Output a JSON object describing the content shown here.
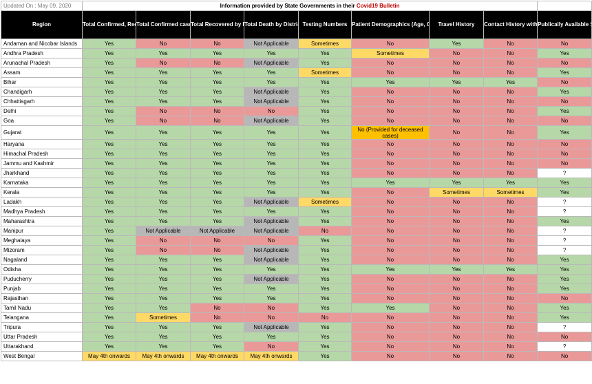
{
  "updated": "Updated On : May 09, 2020",
  "info_prefix": "Information provided by State Governments in their ",
  "info_highlight": "Covid19 Bulletin",
  "headers": [
    "Region",
    "Total Confirmed, Recovered, Deceased, Active Cases",
    "Total Confirmed case by District",
    "Total Recovered by District",
    "Total Death by District",
    "Testing Numbers",
    "Patient Demographics (Age, Gender)",
    "Travel History",
    "Contact History with Previous Patient",
    "Publically Available State Dashboard"
  ],
  "colors": {
    "yes": "#b6d7a8",
    "no": "#ea9999",
    "not_applicable": "#b7b7b7",
    "sometimes": "#ffd966",
    "note": "#ffc000",
    "header_bg": "#000000",
    "highlight_text": "#c00000"
  },
  "rows": [
    {
      "region": "Andaman and Nicobar Islands",
      "cells": [
        [
          "Yes",
          "y"
        ],
        [
          "No",
          "n"
        ],
        [
          "No",
          "n"
        ],
        [
          "Not Applicable",
          "na"
        ],
        [
          "Sometimes",
          "s"
        ],
        [
          "No",
          "n"
        ],
        [
          "Yes",
          "y"
        ],
        [
          "No",
          "n"
        ],
        [
          "No",
          "n"
        ]
      ]
    },
    {
      "region": "Andhra Pradesh",
      "cells": [
        [
          "Yes",
          "y"
        ],
        [
          "Yes",
          "y"
        ],
        [
          "Yes",
          "y"
        ],
        [
          "Yes",
          "y"
        ],
        [
          "Yes",
          "y"
        ],
        [
          "Sometimes",
          "s"
        ],
        [
          "No",
          "n"
        ],
        [
          "No",
          "n"
        ],
        [
          "Yes",
          "y"
        ]
      ]
    },
    {
      "region": "Arunachal Pradesh",
      "cells": [
        [
          "Yes",
          "y"
        ],
        [
          "No",
          "n"
        ],
        [
          "No",
          "n"
        ],
        [
          "Not Applicable",
          "na"
        ],
        [
          "Yes",
          "y"
        ],
        [
          "No",
          "n"
        ],
        [
          "No",
          "n"
        ],
        [
          "No",
          "n"
        ],
        [
          "No",
          "n"
        ]
      ]
    },
    {
      "region": "Assam",
      "cells": [
        [
          "Yes",
          "y"
        ],
        [
          "Yes",
          "y"
        ],
        [
          "Yes",
          "y"
        ],
        [
          "Yes",
          "y"
        ],
        [
          "Sometimes",
          "s"
        ],
        [
          "No",
          "n"
        ],
        [
          "No",
          "n"
        ],
        [
          "No",
          "n"
        ],
        [
          "Yes",
          "y"
        ]
      ]
    },
    {
      "region": "Bihar",
      "cells": [
        [
          "Yes",
          "y"
        ],
        [
          "Yes",
          "y"
        ],
        [
          "Yes",
          "y"
        ],
        [
          "Yes",
          "y"
        ],
        [
          "Yes",
          "y"
        ],
        [
          "Yes",
          "y"
        ],
        [
          "Yes",
          "y"
        ],
        [
          "Yes",
          "y"
        ],
        [
          "No",
          "n"
        ]
      ]
    },
    {
      "region": "Chandigarh",
      "cells": [
        [
          "Yes",
          "y"
        ],
        [
          "Yes",
          "y"
        ],
        [
          "Yes",
          "y"
        ],
        [
          "Not Applicable",
          "na"
        ],
        [
          "Yes",
          "y"
        ],
        [
          "No",
          "n"
        ],
        [
          "No",
          "n"
        ],
        [
          "No",
          "n"
        ],
        [
          "Yes",
          "y"
        ]
      ]
    },
    {
      "region": "Chhattisgarh",
      "cells": [
        [
          "Yes",
          "y"
        ],
        [
          "Yes",
          "y"
        ],
        [
          "Yes",
          "y"
        ],
        [
          "Not Applicable",
          "na"
        ],
        [
          "Yes",
          "y"
        ],
        [
          "No",
          "n"
        ],
        [
          "No",
          "n"
        ],
        [
          "No",
          "n"
        ],
        [
          "No",
          "n"
        ]
      ]
    },
    {
      "region": "Delhi",
      "cells": [
        [
          "Yes",
          "y"
        ],
        [
          "No",
          "n"
        ],
        [
          "No",
          "n"
        ],
        [
          "No",
          "n"
        ],
        [
          "Yes",
          "y"
        ],
        [
          "No",
          "n"
        ],
        [
          "No",
          "n"
        ],
        [
          "No",
          "n"
        ],
        [
          "Yes",
          "y"
        ]
      ]
    },
    {
      "region": "Goa",
      "cells": [
        [
          "Yes",
          "y"
        ],
        [
          "No",
          "n"
        ],
        [
          "No",
          "n"
        ],
        [
          "Not Applicable",
          "na"
        ],
        [
          "Yes",
          "y"
        ],
        [
          "No",
          "n"
        ],
        [
          "No",
          "n"
        ],
        [
          "No",
          "n"
        ],
        [
          "No",
          "n"
        ]
      ]
    },
    {
      "region": "Gujarat",
      "tall": true,
      "cells": [
        [
          "Yes",
          "y"
        ],
        [
          "Yes",
          "y"
        ],
        [
          "Yes",
          "y"
        ],
        [
          "Yes",
          "y"
        ],
        [
          "Yes",
          "y"
        ],
        [
          "No\n(Provided for deceased cases)",
          "note"
        ],
        [
          "No",
          "n"
        ],
        [
          "No",
          "n"
        ],
        [
          "Yes",
          "y"
        ]
      ]
    },
    {
      "region": "Haryana",
      "cells": [
        [
          "Yes",
          "y"
        ],
        [
          "Yes",
          "y"
        ],
        [
          "Yes",
          "y"
        ],
        [
          "Yes",
          "y"
        ],
        [
          "Yes",
          "y"
        ],
        [
          "No",
          "n"
        ],
        [
          "No",
          "n"
        ],
        [
          "No",
          "n"
        ],
        [
          "No",
          "n"
        ]
      ]
    },
    {
      "region": "Himachal Pradesh",
      "cells": [
        [
          "Yes",
          "y"
        ],
        [
          "Yes",
          "y"
        ],
        [
          "Yes",
          "y"
        ],
        [
          "Yes",
          "y"
        ],
        [
          "Yes",
          "y"
        ],
        [
          "No",
          "n"
        ],
        [
          "No",
          "n"
        ],
        [
          "No",
          "n"
        ],
        [
          "No",
          "n"
        ]
      ]
    },
    {
      "region": "Jammu and Kashmir",
      "cells": [
        [
          "Yes",
          "y"
        ],
        [
          "Yes",
          "y"
        ],
        [
          "Yes",
          "y"
        ],
        [
          "Yes",
          "y"
        ],
        [
          "Yes",
          "y"
        ],
        [
          "No",
          "n"
        ],
        [
          "No",
          "n"
        ],
        [
          "No",
          "n"
        ],
        [
          "No",
          "n"
        ]
      ]
    },
    {
      "region": "Jharkhand",
      "cells": [
        [
          "Yes",
          "y"
        ],
        [
          "Yes",
          "y"
        ],
        [
          "Yes",
          "y"
        ],
        [
          "Yes",
          "y"
        ],
        [
          "Yes",
          "y"
        ],
        [
          "No",
          "n"
        ],
        [
          "No",
          "n"
        ],
        [
          "No",
          "n"
        ],
        [
          "?",
          "u"
        ]
      ]
    },
    {
      "region": "Karnataka",
      "cells": [
        [
          "Yes",
          "y"
        ],
        [
          "Yes",
          "y"
        ],
        [
          "Yes",
          "y"
        ],
        [
          "Yes",
          "y"
        ],
        [
          "Yes",
          "y"
        ],
        [
          "Yes",
          "y"
        ],
        [
          "Yes",
          "y"
        ],
        [
          "Yes",
          "y"
        ],
        [
          "Yes",
          "y"
        ]
      ]
    },
    {
      "region": "Kerala",
      "cells": [
        [
          "Yes",
          "y"
        ],
        [
          "Yes",
          "y"
        ],
        [
          "Yes",
          "y"
        ],
        [
          "Yes",
          "y"
        ],
        [
          "Yes",
          "y"
        ],
        [
          "No",
          "n"
        ],
        [
          "Sometimes",
          "s"
        ],
        [
          "Sometimes",
          "s"
        ],
        [
          "Yes",
          "y"
        ]
      ]
    },
    {
      "region": "Ladakh",
      "cells": [
        [
          "Yes",
          "y"
        ],
        [
          "Yes",
          "y"
        ],
        [
          "Yes",
          "y"
        ],
        [
          "Not Applicable",
          "na"
        ],
        [
          "Sometimes",
          "s"
        ],
        [
          "No",
          "n"
        ],
        [
          "No",
          "n"
        ],
        [
          "No",
          "n"
        ],
        [
          "?",
          "u"
        ]
      ]
    },
    {
      "region": "Madhya Pradesh",
      "cells": [
        [
          "Yes",
          "y"
        ],
        [
          "Yes",
          "y"
        ],
        [
          "Yes",
          "y"
        ],
        [
          "Yes",
          "y"
        ],
        [
          "Yes",
          "y"
        ],
        [
          "No",
          "n"
        ],
        [
          "No",
          "n"
        ],
        [
          "No",
          "n"
        ],
        [
          "?",
          "u"
        ]
      ]
    },
    {
      "region": "Maharashtra",
      "cells": [
        [
          "Yes",
          "y"
        ],
        [
          "Yes",
          "y"
        ],
        [
          "Yes",
          "y"
        ],
        [
          "Not Applicable",
          "na"
        ],
        [
          "Yes",
          "y"
        ],
        [
          "No",
          "n"
        ],
        [
          "No",
          "n"
        ],
        [
          "No",
          "n"
        ],
        [
          "Yes",
          "y"
        ]
      ]
    },
    {
      "region": "Manipur",
      "cells": [
        [
          "Yes",
          "y"
        ],
        [
          "Not Applicable",
          "na"
        ],
        [
          "Not Applicable",
          "na"
        ],
        [
          "Not Applicable",
          "na"
        ],
        [
          "No",
          "n"
        ],
        [
          "No",
          "n"
        ],
        [
          "No",
          "n"
        ],
        [
          "No",
          "n"
        ],
        [
          "?",
          "u"
        ]
      ]
    },
    {
      "region": "Meghalaya",
      "cells": [
        [
          "Yes",
          "y"
        ],
        [
          "No",
          "n"
        ],
        [
          "No",
          "n"
        ],
        [
          "No",
          "n"
        ],
        [
          "Yes",
          "y"
        ],
        [
          "No",
          "n"
        ],
        [
          "No",
          "n"
        ],
        [
          "No",
          "n"
        ],
        [
          "?",
          "u"
        ]
      ]
    },
    {
      "region": "Mizoram",
      "cells": [
        [
          "Yes",
          "y"
        ],
        [
          "No",
          "n"
        ],
        [
          "No",
          "n"
        ],
        [
          "Not Applicable",
          "na"
        ],
        [
          "Yes",
          "y"
        ],
        [
          "No",
          "n"
        ],
        [
          "No",
          "n"
        ],
        [
          "No",
          "n"
        ],
        [
          "?",
          "u"
        ]
      ]
    },
    {
      "region": "Nagaland",
      "cells": [
        [
          "Yes",
          "y"
        ],
        [
          "Yes",
          "y"
        ],
        [
          "Yes",
          "y"
        ],
        [
          "Not Applicable",
          "na"
        ],
        [
          "Yes",
          "y"
        ],
        [
          "No",
          "n"
        ],
        [
          "No",
          "n"
        ],
        [
          "No",
          "n"
        ],
        [
          "Yes",
          "y"
        ]
      ]
    },
    {
      "region": "Odisha",
      "cells": [
        [
          "Yes",
          "y"
        ],
        [
          "Yes",
          "y"
        ],
        [
          "Yes",
          "y"
        ],
        [
          "Yes",
          "y"
        ],
        [
          "Yes",
          "y"
        ],
        [
          "Yes",
          "y"
        ],
        [
          "Yes",
          "y"
        ],
        [
          "Yes",
          "y"
        ],
        [
          "Yes",
          "y"
        ]
      ]
    },
    {
      "region": "Puducherry",
      "cells": [
        [
          "Yes",
          "y"
        ],
        [
          "Yes",
          "y"
        ],
        [
          "Yes",
          "y"
        ],
        [
          "Not Applicable",
          "na"
        ],
        [
          "Yes",
          "y"
        ],
        [
          "No",
          "n"
        ],
        [
          "No",
          "n"
        ],
        [
          "No",
          "n"
        ],
        [
          "Yes",
          "y"
        ]
      ]
    },
    {
      "region": "Punjab",
      "cells": [
        [
          "Yes",
          "y"
        ],
        [
          "Yes",
          "y"
        ],
        [
          "Yes",
          "y"
        ],
        [
          "Yes",
          "y"
        ],
        [
          "Yes",
          "y"
        ],
        [
          "No",
          "n"
        ],
        [
          "No",
          "n"
        ],
        [
          "No",
          "n"
        ],
        [
          "Yes",
          "y"
        ]
      ]
    },
    {
      "region": "Rajasthan",
      "cells": [
        [
          "Yes",
          "y"
        ],
        [
          "Yes",
          "y"
        ],
        [
          "Yes",
          "y"
        ],
        [
          "Yes",
          "y"
        ],
        [
          "Yes",
          "y"
        ],
        [
          "No",
          "n"
        ],
        [
          "No",
          "n"
        ],
        [
          "No",
          "n"
        ],
        [
          "No",
          "n"
        ]
      ]
    },
    {
      "region": "Tamil Nadu",
      "cells": [
        [
          "Yes",
          "y"
        ],
        [
          "Yes",
          "y"
        ],
        [
          "No",
          "n"
        ],
        [
          "No",
          "n"
        ],
        [
          "Yes",
          "y"
        ],
        [
          "Yes",
          "y"
        ],
        [
          "No",
          "n"
        ],
        [
          "No",
          "n"
        ],
        [
          "Yes",
          "y"
        ]
      ]
    },
    {
      "region": "Telangana",
      "cells": [
        [
          "Yes",
          "y"
        ],
        [
          "Sometimes",
          "s"
        ],
        [
          "No",
          "n"
        ],
        [
          "No",
          "n"
        ],
        [
          "No",
          "n"
        ],
        [
          "No",
          "n"
        ],
        [
          "No",
          "n"
        ],
        [
          "No",
          "n"
        ],
        [
          "Yes",
          "y"
        ]
      ]
    },
    {
      "region": "Tripura",
      "cells": [
        [
          "Yes",
          "y"
        ],
        [
          "Yes",
          "y"
        ],
        [
          "Yes",
          "y"
        ],
        [
          "Not Applicable",
          "na"
        ],
        [
          "Yes",
          "y"
        ],
        [
          "No",
          "n"
        ],
        [
          "No",
          "n"
        ],
        [
          "No",
          "n"
        ],
        [
          "?",
          "u"
        ]
      ]
    },
    {
      "region": "Uttar Pradesh",
      "cells": [
        [
          "Yes",
          "y"
        ],
        [
          "Yes",
          "y"
        ],
        [
          "Yes",
          "y"
        ],
        [
          "Yes",
          "y"
        ],
        [
          "Yes",
          "y"
        ],
        [
          "No",
          "n"
        ],
        [
          "No",
          "n"
        ],
        [
          "No",
          "n"
        ],
        [
          "No",
          "n"
        ]
      ]
    },
    {
      "region": "Uttarakhand",
      "cells": [
        [
          "Yes",
          "y"
        ],
        [
          "Yes",
          "y"
        ],
        [
          "Yes",
          "y"
        ],
        [
          "No",
          "n"
        ],
        [
          "Yes",
          "y"
        ],
        [
          "No",
          "n"
        ],
        [
          "No",
          "n"
        ],
        [
          "No",
          "n"
        ],
        [
          "?",
          "u"
        ]
      ]
    },
    {
      "region": "West Bengal",
      "cells": [
        [
          "May 4th onwards",
          "s"
        ],
        [
          "May 4th onwards",
          "s"
        ],
        [
          "May 4th onwards",
          "s"
        ],
        [
          "May 4th onwards",
          "s"
        ],
        [
          "Yes",
          "y"
        ],
        [
          "No",
          "n"
        ],
        [
          "No",
          "n"
        ],
        [
          "No",
          "n"
        ],
        [
          "No",
          "n"
        ]
      ]
    }
  ]
}
